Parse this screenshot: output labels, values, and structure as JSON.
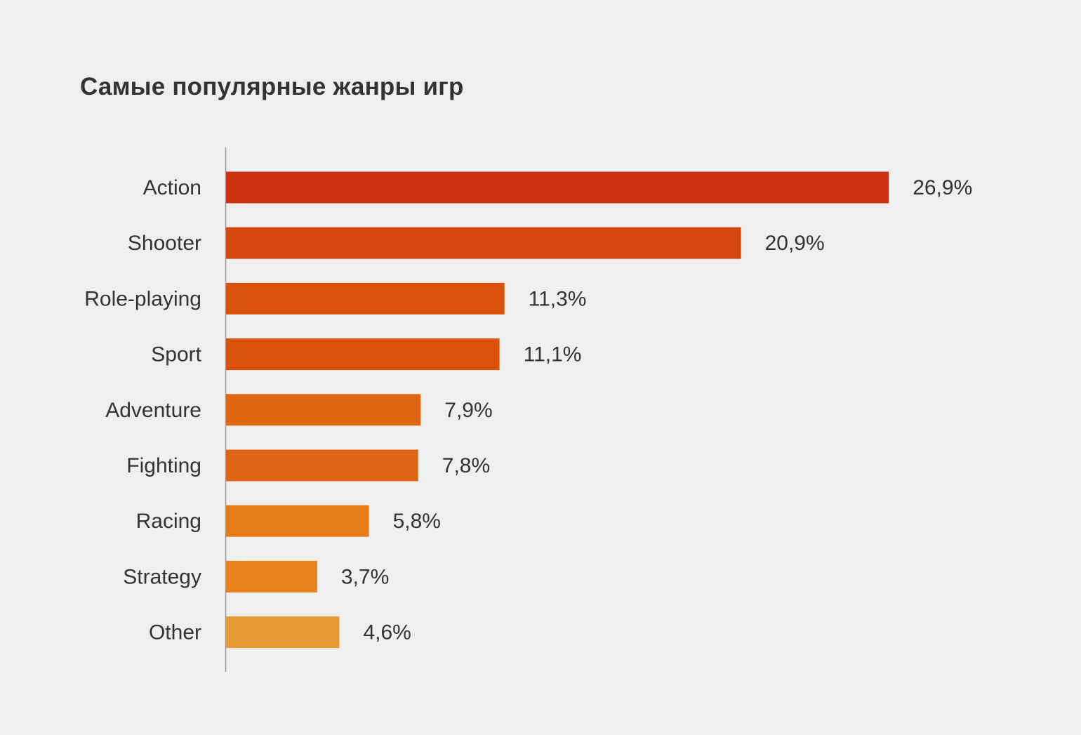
{
  "chart_data": {
    "type": "bar",
    "orientation": "horizontal",
    "title": "Самые популярные жанры игр",
    "xlabel": "",
    "ylabel": "",
    "grid": false,
    "legend": "none",
    "categories": [
      "Action",
      "Shooter",
      "Role-playing",
      "Sport",
      "Adventure",
      "Fighting",
      "Racing",
      "Strategy",
      "Other"
    ],
    "values": [
      26.9,
      20.9,
      11.3,
      11.1,
      7.9,
      7.8,
      5.8,
      3.7,
      4.6
    ],
    "value_labels": [
      "26,9%",
      "20,9%",
      "11,3%",
      "11,1%",
      "7,9%",
      "7,8%",
      "5,8%",
      "3,7%",
      "4,6%"
    ],
    "colors": [
      "#cc3212",
      "#d6480e",
      "#da530d",
      "#da530d",
      "#e06614",
      "#df6415",
      "#e77d19",
      "#e8821c",
      "#e59937"
    ],
    "unit": "%"
  }
}
